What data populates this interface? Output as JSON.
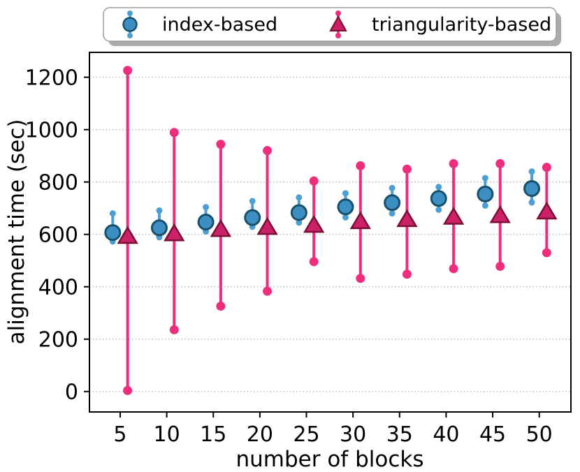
{
  "chart_data": {
    "type": "errorbar",
    "title": "",
    "xlabel": "number of blocks",
    "ylabel": "alignment time (sec)",
    "x": [
      5,
      10,
      15,
      20,
      25,
      30,
      35,
      40,
      45,
      50
    ],
    "xtick_labels": [
      "5",
      "10",
      "15",
      "20",
      "25",
      "30",
      "35",
      "40",
      "45",
      "50"
    ],
    "yticks": [
      0,
      200,
      400,
      600,
      800,
      1000,
      1200
    ],
    "ytick_labels": [
      "0",
      "200",
      "400",
      "600",
      "800",
      "1000",
      "1200"
    ],
    "xlim": [
      1.7,
      53.4
    ],
    "ylim": [
      -78,
      1295
    ],
    "grid": "horizontal-dotted",
    "gridline_color": "#bdbdbd",
    "legend_position": "upper-center-above-axes",
    "series": [
      {
        "name": "index-based",
        "marker": "circle",
        "x_offset_blocks": -0.8,
        "mean": [
          607,
          625,
          647,
          664,
          683,
          705,
          721,
          737,
          754,
          775
        ],
        "upper": [
          680,
          691,
          704,
          727,
          741,
          757,
          777,
          781,
          815,
          840
        ],
        "lower": [
          573,
          589,
          611,
          629,
          645,
          665,
          680,
          694,
          710,
          722
        ],
        "colors": {
          "fill": "#3d8ec2",
          "edge": "#17506b",
          "line": "#4d9fd1"
        }
      },
      {
        "name": "triangularity-based",
        "marker": "triangle-up",
        "x_offset_blocks": 0.8,
        "mean": [
          594,
          604,
          620,
          628,
          636,
          650,
          658,
          667,
          673,
          687
        ],
        "upper": [
          1226,
          989,
          944,
          920,
          804,
          862,
          849,
          870,
          870,
          856
        ],
        "lower": [
          4,
          236,
          326,
          383,
          496,
          432,
          448,
          469,
          478,
          530
        ],
        "colors": {
          "fill": "#cc2168",
          "edge": "#7a1035",
          "line": "#ee2d7c"
        }
      }
    ]
  }
}
